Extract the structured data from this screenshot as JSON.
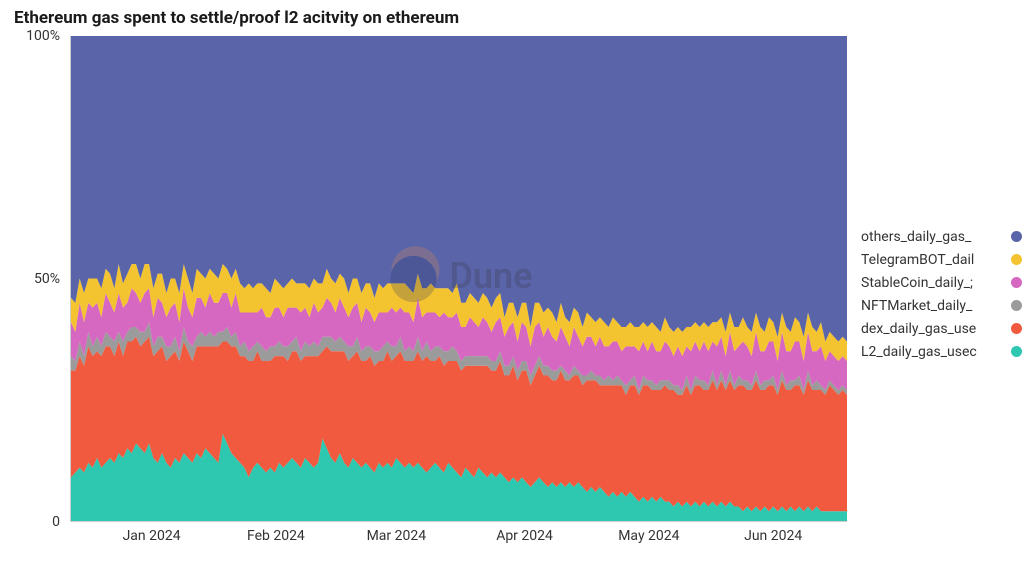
{
  "chart": {
    "type": "area",
    "title": "Ethereum gas spent to settle/proof l2 acitvity on ethereum",
    "title_fontsize": 17,
    "title_fontweight": 700,
    "background_color": "#ffffff",
    "axis_color": "#cccccc",
    "label_color": "#333333",
    "label_fontsize": 14,
    "ylim": [
      0,
      100
    ],
    "y_ticks": [
      {
        "value": 0,
        "label": "0"
      },
      {
        "value": 50,
        "label": "50%"
      },
      {
        "value": 100,
        "label": "100%"
      }
    ],
    "x_ticks": [
      {
        "pos": 0.105,
        "label": "Jan 2024"
      },
      {
        "pos": 0.265,
        "label": "Feb 2024"
      },
      {
        "pos": 0.42,
        "label": "Mar 2024"
      },
      {
        "pos": 0.585,
        "label": "Apr 2024"
      },
      {
        "pos": 0.745,
        "label": "May 2024"
      },
      {
        "pos": 0.905,
        "label": "Jun 2024"
      }
    ],
    "watermark_text": "Dune",
    "legend_position": "right",
    "series": [
      {
        "key": "L2",
        "label": "L2_daily_gas_usec",
        "color": "#2ec7b0"
      },
      {
        "key": "dex",
        "label": "dex_daily_gas_use",
        "color": "#f15a3e"
      },
      {
        "key": "NFTMarket",
        "label": "NFTMarket_daily_",
        "color": "#9b9b9b"
      },
      {
        "key": "StableCoin",
        "label": "StableCoin_daily_;",
        "color": "#d768c1"
      },
      {
        "key": "TelegramBOT",
        "label": "TelegramBOT_dail",
        "color": "#f4c430"
      },
      {
        "key": "others",
        "label": "others_daily_gas_",
        "color": "#5a64a8"
      }
    ],
    "legend_order": [
      "others",
      "TelegramBOT",
      "StableCoin",
      "NFTMarket",
      "dex",
      "L2"
    ],
    "n_points": 180,
    "data": {
      "L2": [
        9,
        10,
        11,
        10,
        12,
        11,
        13,
        11,
        12,
        13,
        12,
        14,
        13,
        15,
        14,
        16,
        15,
        14,
        16,
        13,
        12,
        14,
        12,
        11,
        13,
        12,
        14,
        13,
        12,
        14,
        13,
        15,
        14,
        13,
        12,
        18,
        16,
        14,
        13,
        12,
        11,
        9,
        11,
        12,
        11,
        10,
        11,
        10,
        12,
        11,
        12,
        13,
        12,
        11,
        13,
        12,
        11,
        12,
        17,
        15,
        13,
        12,
        14,
        12,
        11,
        13,
        12,
        11,
        12,
        11,
        10,
        12,
        11,
        12,
        11,
        13,
        12,
        11,
        12,
        11,
        12,
        11,
        10,
        11,
        12,
        11,
        10,
        12,
        11,
        10,
        9,
        11,
        10,
        9,
        11,
        10,
        9,
        10,
        9,
        10,
        9,
        8,
        9,
        8,
        9,
        8,
        7,
        8,
        9,
        8,
        7,
        8,
        7,
        8,
        7,
        8,
        7,
        8,
        7,
        6,
        7,
        6,
        7,
        6,
        5,
        6,
        5,
        6,
        5,
        6,
        5,
        4,
        5,
        4,
        5,
        4,
        5,
        4,
        4,
        3,
        4,
        3,
        4,
        3,
        4,
        3,
        4,
        3,
        4,
        3,
        4,
        3,
        4,
        3,
        3,
        2,
        3,
        2,
        3,
        2,
        3,
        2,
        3,
        2,
        3,
        2,
        3,
        2,
        3,
        2,
        3,
        2,
        3,
        2,
        2,
        2,
        2,
        2,
        2,
        2
      ],
      "dex": [
        22,
        21,
        23,
        22,
        24,
        23,
        22,
        23,
        24,
        23,
        22,
        23,
        21,
        22,
        23,
        22,
        21,
        23,
        22,
        21,
        23,
        22,
        21,
        23,
        22,
        21,
        23,
        22,
        21,
        22,
        23,
        21,
        22,
        23,
        24,
        19,
        21,
        22,
        23,
        22,
        23,
        24,
        22,
        23,
        22,
        23,
        22,
        24,
        22,
        23,
        21,
        22,
        23,
        22,
        21,
        22,
        23,
        22,
        18,
        21,
        22,
        23,
        21,
        23,
        22,
        21,
        23,
        22,
        21,
        23,
        22,
        21,
        22,
        23,
        22,
        21,
        23,
        22,
        21,
        22,
        23,
        22,
        24,
        22,
        21,
        23,
        22,
        21,
        22,
        23,
        22,
        21,
        22,
        23,
        21,
        22,
        23,
        21,
        22,
        23,
        21,
        22,
        23,
        21,
        22,
        23,
        21,
        22,
        23,
        22,
        23,
        21,
        22,
        23,
        22,
        21,
        23,
        22,
        21,
        23,
        22,
        23,
        21,
        22,
        23,
        22,
        23,
        22,
        21,
        22,
        23,
        22,
        23,
        24,
        22,
        23,
        22,
        24,
        23,
        24,
        22,
        23,
        24,
        23,
        24,
        25,
        23,
        24,
        25,
        24,
        25,
        24,
        25,
        24,
        25,
        26,
        24,
        25,
        26,
        25,
        24,
        26,
        25,
        24,
        26,
        25,
        24,
        26,
        25,
        24,
        26,
        25,
        24,
        25,
        24,
        26,
        25,
        24,
        25,
        24
      ],
      "NFTMarket": [
        3,
        2,
        3,
        2,
        3,
        2,
        3,
        2,
        3,
        2,
        3,
        2,
        3,
        2,
        3,
        2,
        3,
        2,
        3,
        2,
        3,
        2,
        3,
        2,
        3,
        2,
        3,
        2,
        3,
        2,
        3,
        2,
        3,
        2,
        3,
        2,
        3,
        2,
        3,
        2,
        3,
        2,
        3,
        2,
        3,
        2,
        3,
        2,
        3,
        2,
        3,
        2,
        3,
        2,
        3,
        2,
        3,
        2,
        3,
        2,
        3,
        2,
        3,
        2,
        3,
        2,
        3,
        2,
        3,
        2,
        3,
        2,
        3,
        2,
        3,
        2,
        3,
        2,
        3,
        2,
        3,
        2,
        3,
        2,
        3,
        2,
        3,
        2,
        3,
        2,
        2,
        2,
        2,
        2,
        2,
        2,
        2,
        2,
        2,
        2,
        2,
        2,
        2,
        2,
        2,
        2,
        2,
        2,
        2,
        2,
        2,
        2,
        2,
        1,
        2,
        1,
        2,
        1,
        2,
        1,
        2,
        1,
        2,
        1,
        2,
        1,
        2,
        1,
        2,
        1,
        2,
        1,
        2,
        1,
        2,
        1,
        2,
        1,
        2,
        1,
        2,
        1,
        2,
        1,
        2,
        1,
        2,
        1,
        2,
        1,
        2,
        1,
        2,
        1,
        2,
        1,
        2,
        1,
        2,
        1,
        2,
        1,
        2,
        1,
        2,
        1,
        2,
        1,
        2,
        1,
        2,
        1,
        2,
        1,
        1,
        1,
        1,
        1,
        1,
        1
      ],
      "StableCoin": [
        7,
        6,
        8,
        7,
        6,
        8,
        7,
        6,
        8,
        7,
        6,
        8,
        7,
        6,
        8,
        7,
        6,
        8,
        7,
        6,
        8,
        7,
        6,
        8,
        7,
        6,
        8,
        7,
        6,
        8,
        7,
        6,
        8,
        7,
        6,
        8,
        7,
        6,
        8,
        7,
        6,
        8,
        7,
        6,
        8,
        7,
        6,
        8,
        7,
        6,
        8,
        7,
        6,
        8,
        7,
        6,
        8,
        7,
        6,
        8,
        7,
        6,
        8,
        7,
        6,
        8,
        7,
        6,
        8,
        7,
        6,
        8,
        7,
        6,
        8,
        7,
        6,
        8,
        7,
        6,
        8,
        7,
        6,
        8,
        7,
        6,
        8,
        7,
        6,
        8,
        7,
        6,
        8,
        7,
        6,
        8,
        7,
        6,
        8,
        7,
        6,
        8,
        7,
        6,
        8,
        7,
        6,
        8,
        7,
        6,
        8,
        7,
        6,
        8,
        7,
        6,
        8,
        7,
        6,
        8,
        7,
        6,
        8,
        7,
        6,
        8,
        7,
        6,
        8,
        7,
        6,
        8,
        7,
        6,
        8,
        7,
        6,
        8,
        7,
        6,
        8,
        7,
        6,
        8,
        7,
        6,
        8,
        7,
        6,
        8,
        7,
        6,
        8,
        7,
        6,
        8,
        7,
        6,
        8,
        7,
        6,
        8,
        7,
        6,
        8,
        7,
        6,
        8,
        7,
        6,
        8,
        7,
        6,
        8,
        6,
        6,
        6,
        6,
        6,
        6
      ],
      "TelegramBOT": [
        5,
        6,
        5,
        6,
        5,
        6,
        5,
        6,
        5,
        6,
        5,
        6,
        5,
        6,
        5,
        6,
        5,
        6,
        5,
        6,
        5,
        6,
        5,
        6,
        5,
        6,
        5,
        6,
        5,
        6,
        5,
        6,
        5,
        6,
        5,
        6,
        5,
        6,
        5,
        6,
        5,
        6,
        5,
        6,
        5,
        6,
        5,
        6,
        5,
        6,
        5,
        6,
        5,
        6,
        5,
        6,
        5,
        6,
        5,
        6,
        5,
        6,
        5,
        6,
        5,
        6,
        5,
        6,
        5,
        6,
        5,
        6,
        5,
        6,
        5,
        6,
        5,
        6,
        5,
        6,
        5,
        6,
        5,
        6,
        5,
        6,
        5,
        6,
        5,
        6,
        5,
        5,
        5,
        5,
        5,
        5,
        5,
        5,
        5,
        5,
        4,
        5,
        4,
        5,
        4,
        5,
        4,
        5,
        4,
        5,
        4,
        5,
        4,
        5,
        4,
        5,
        4,
        5,
        4,
        5,
        4,
        5,
        4,
        5,
        4,
        5,
        4,
        5,
        4,
        5,
        4,
        5,
        4,
        5,
        4,
        5,
        4,
        5,
        4,
        5,
        4,
        5,
        4,
        5,
        4,
        5,
        4,
        5,
        4,
        5,
        4,
        5,
        4,
        5,
        4,
        5,
        4,
        5,
        4,
        5,
        4,
        5,
        4,
        5,
        4,
        5,
        4,
        5,
        4,
        5,
        4,
        5,
        4,
        5,
        4,
        4,
        4,
        4,
        4,
        4
      ]
    }
  }
}
